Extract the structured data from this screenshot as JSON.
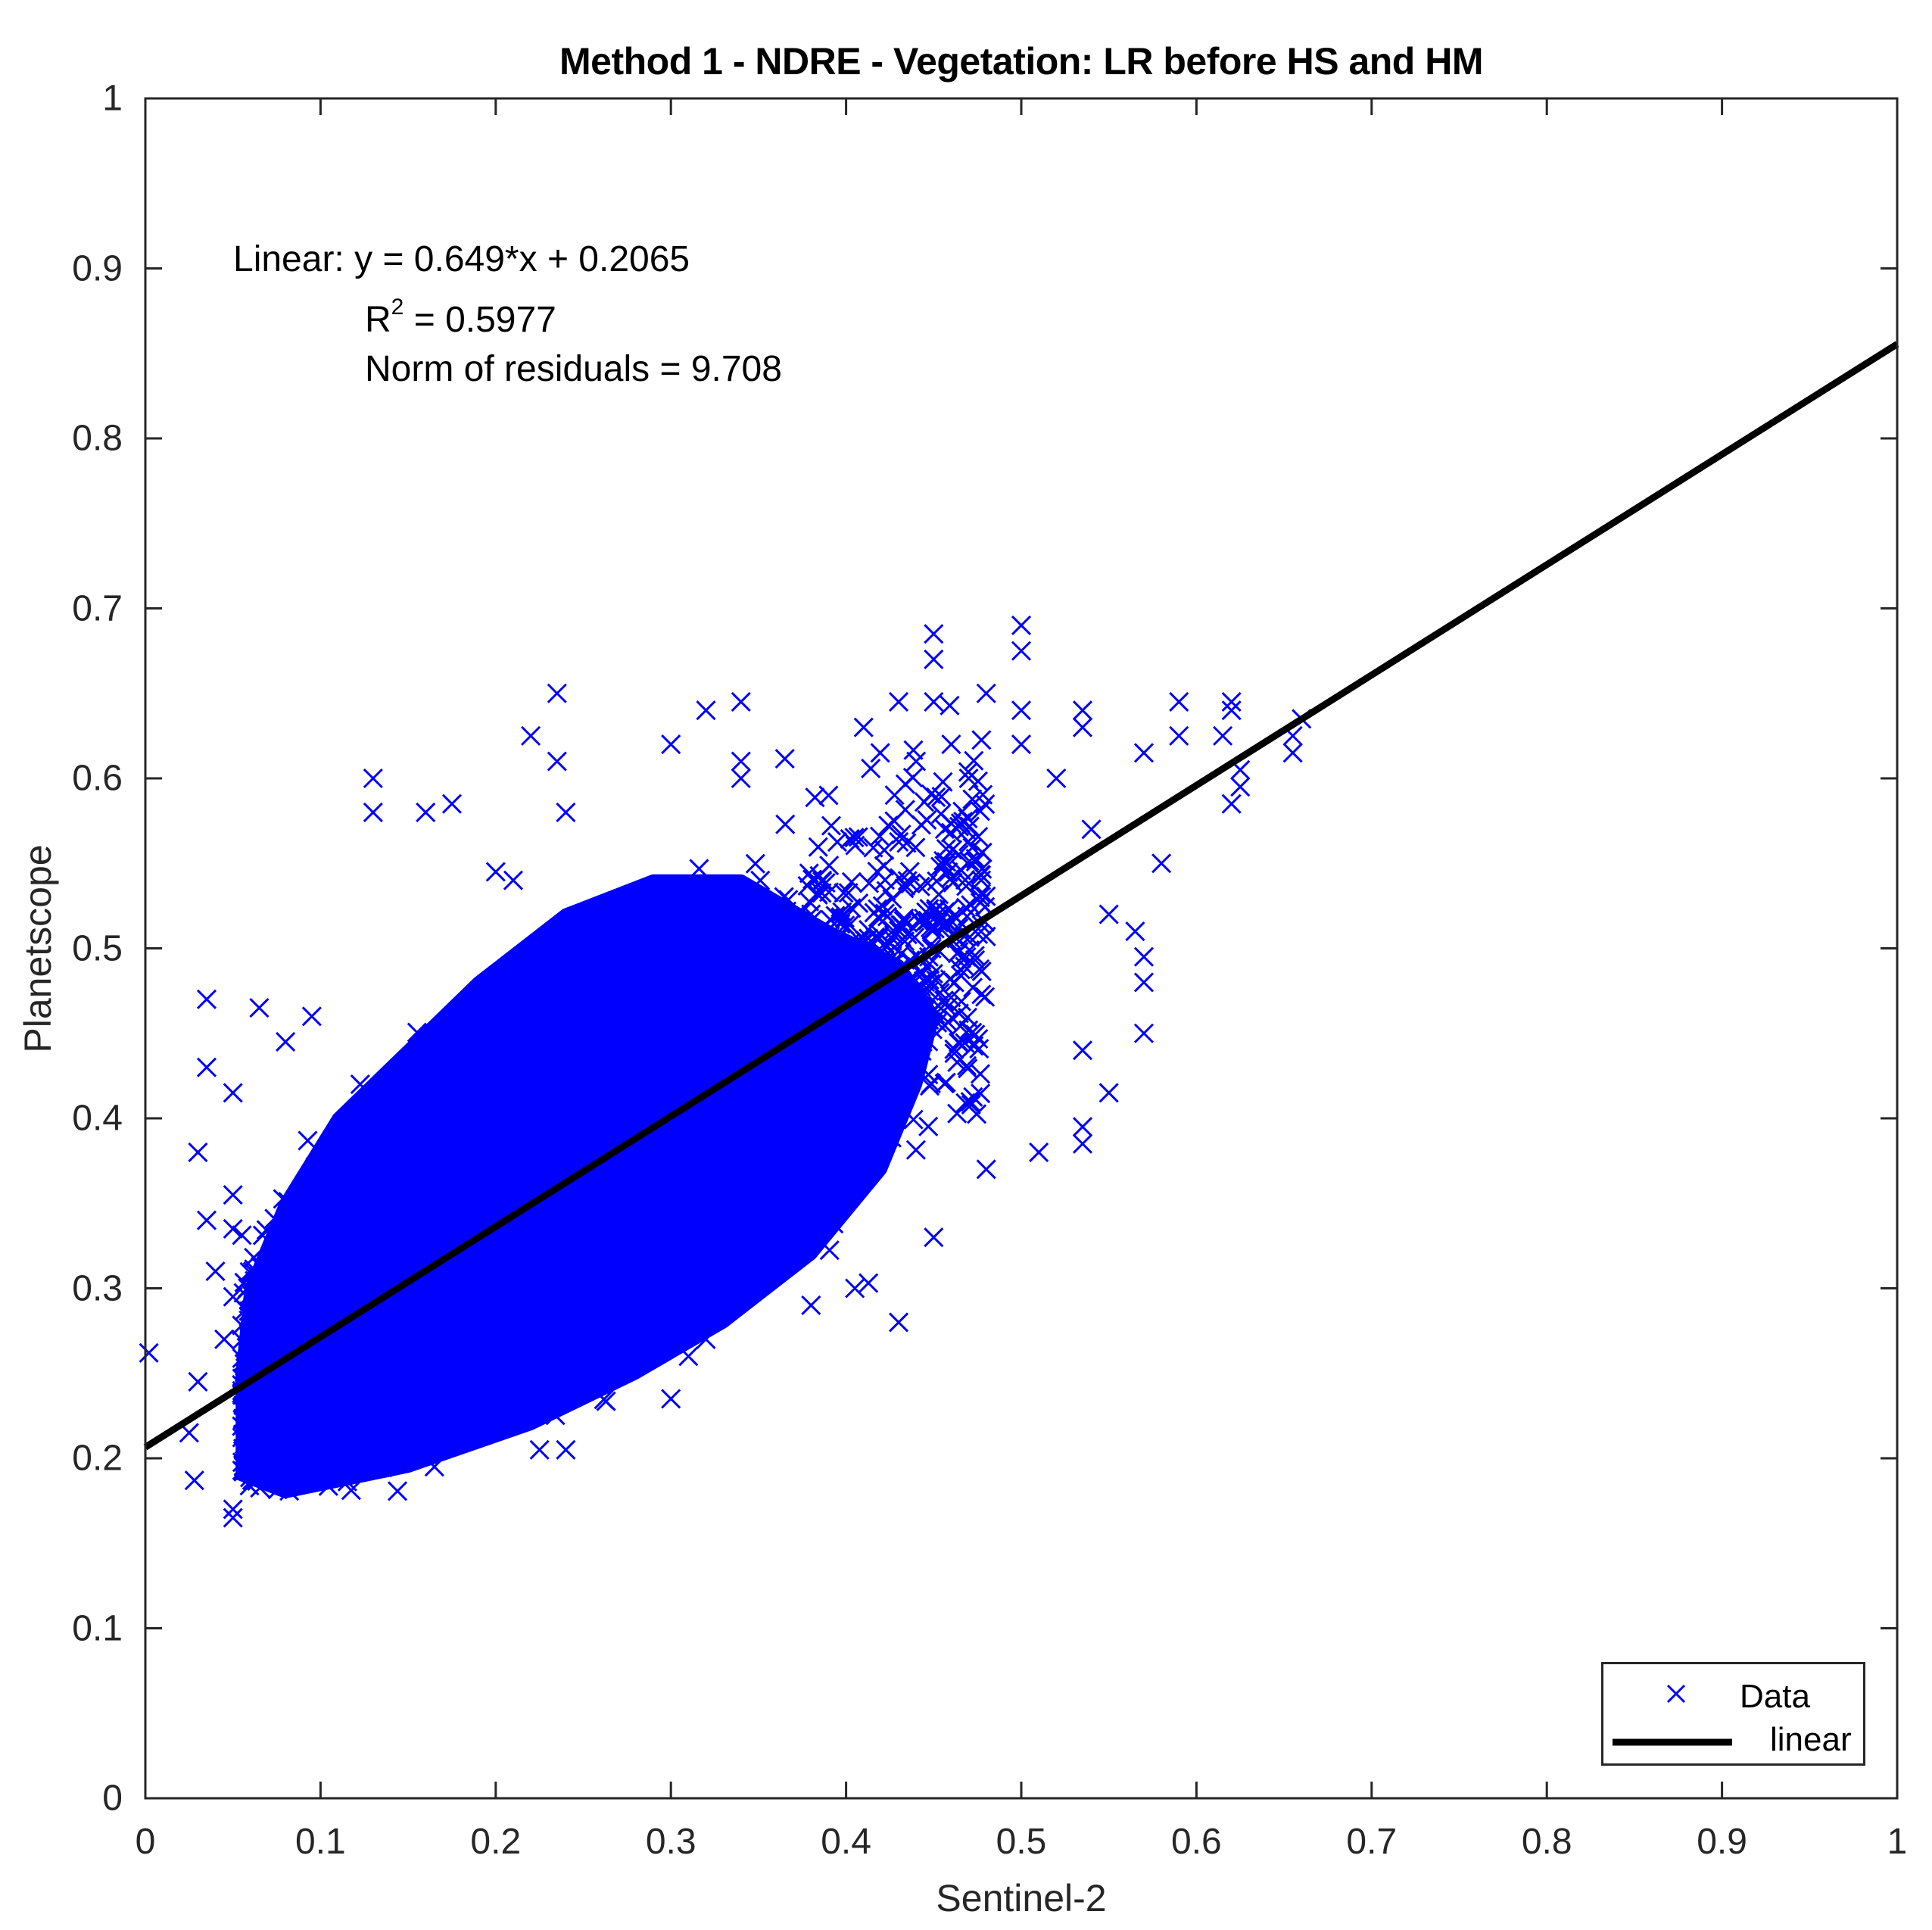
{
  "figure": {
    "title": "Method 1 - NDRE - Vegetation: LR before HS and HM",
    "xlabel": "Sentinel-2",
    "ylabel": "Planetscope",
    "annotation": {
      "line1": "Linear:  y = 0.649*x + 0.2065",
      "r2_label": "R",
      "r2_sup": "2",
      "r2_value": " = 0.5977",
      "line3": "Norm of residuals = 9.708"
    },
    "legend": {
      "data_label": "Data",
      "fit_label": "linear"
    },
    "colors": {
      "data": "#0000FF",
      "fit": "#000000",
      "axes": "#262626"
    }
  },
  "chart_data": {
    "type": "scatter",
    "title": "Method 1 - NDRE - Vegetation: LR before HS and HM",
    "xlabel": "Sentinel-2",
    "ylabel": "Planetscope",
    "xlim": [
      0,
      1
    ],
    "ylim": [
      0,
      1
    ],
    "xticks": [
      "0",
      "0.1",
      "0.2",
      "0.3",
      "0.4",
      "0.5",
      "0.6",
      "0.7",
      "0.8",
      "0.9",
      "1"
    ],
    "yticks": [
      "0",
      "0.1",
      "0.2",
      "0.3",
      "0.4",
      "0.5",
      "0.6",
      "0.7",
      "0.8",
      "0.9",
      "1"
    ],
    "grid": false,
    "legend_position": "southeast",
    "series": [
      {
        "name": "Data",
        "marker": "x",
        "color": "#0000FF",
        "dense_core_polygon": [
          [
            0.055,
            0.19
          ],
          [
            0.08,
            0.18
          ],
          [
            0.15,
            0.195
          ],
          [
            0.22,
            0.22
          ],
          [
            0.28,
            0.25
          ],
          [
            0.33,
            0.28
          ],
          [
            0.38,
            0.32
          ],
          [
            0.42,
            0.37
          ],
          [
            0.44,
            0.42
          ],
          [
            0.45,
            0.46
          ],
          [
            0.43,
            0.49
          ],
          [
            0.39,
            0.51
          ],
          [
            0.34,
            0.54
          ],
          [
            0.29,
            0.54
          ],
          [
            0.24,
            0.52
          ],
          [
            0.19,
            0.48
          ],
          [
            0.15,
            0.44
          ],
          [
            0.11,
            0.4
          ],
          [
            0.08,
            0.35
          ],
          [
            0.06,
            0.3
          ],
          [
            0.055,
            0.25
          ]
        ],
        "outliers": [
          [
            0.002,
            0.262
          ],
          [
            0.028,
            0.187
          ],
          [
            0.025,
            0.215
          ],
          [
            0.03,
            0.38
          ],
          [
            0.035,
            0.43
          ],
          [
            0.035,
            0.47
          ],
          [
            0.03,
            0.245
          ],
          [
            0.04,
            0.31
          ],
          [
            0.035,
            0.34
          ],
          [
            0.05,
            0.165
          ],
          [
            0.05,
            0.17
          ],
          [
            0.05,
            0.295
          ],
          [
            0.05,
            0.335
          ],
          [
            0.05,
            0.355
          ],
          [
            0.05,
            0.415
          ],
          [
            0.045,
            0.27
          ],
          [
            0.065,
            0.465
          ],
          [
            0.08,
            0.445
          ],
          [
            0.095,
            0.46
          ],
          [
            0.1,
            0.19
          ],
          [
            0.13,
            0.6
          ],
          [
            0.13,
            0.58
          ],
          [
            0.16,
            0.58
          ],
          [
            0.165,
            0.195
          ],
          [
            0.175,
            0.585
          ],
          [
            0.2,
            0.545
          ],
          [
            0.21,
            0.54
          ],
          [
            0.22,
            0.625
          ],
          [
            0.225,
            0.205
          ],
          [
            0.235,
            0.65
          ],
          [
            0.235,
            0.61
          ],
          [
            0.24,
            0.58
          ],
          [
            0.24,
            0.205
          ],
          [
            0.3,
            0.62
          ],
          [
            0.3,
            0.235
          ],
          [
            0.31,
            0.26
          ],
          [
            0.32,
            0.27
          ],
          [
            0.32,
            0.64
          ],
          [
            0.34,
            0.645
          ],
          [
            0.34,
            0.61
          ],
          [
            0.34,
            0.6
          ],
          [
            0.38,
            0.29
          ],
          [
            0.39,
            0.59
          ],
          [
            0.405,
            0.3
          ],
          [
            0.41,
            0.63
          ],
          [
            0.43,
            0.28
          ],
          [
            0.43,
            0.645
          ],
          [
            0.44,
            0.61
          ],
          [
            0.45,
            0.685
          ],
          [
            0.45,
            0.67
          ],
          [
            0.45,
            0.645
          ],
          [
            0.45,
            0.33
          ],
          [
            0.46,
            0.62
          ],
          [
            0.47,
            0.6
          ],
          [
            0.48,
            0.65
          ],
          [
            0.48,
            0.37
          ],
          [
            0.5,
            0.69
          ],
          [
            0.5,
            0.675
          ],
          [
            0.5,
            0.64
          ],
          [
            0.5,
            0.62
          ],
          [
            0.51,
            0.38
          ],
          [
            0.52,
            0.6
          ],
          [
            0.535,
            0.385
          ],
          [
            0.535,
            0.395
          ],
          [
            0.535,
            0.44
          ],
          [
            0.535,
            0.63
          ],
          [
            0.535,
            0.64
          ],
          [
            0.54,
            0.57
          ],
          [
            0.55,
            0.415
          ],
          [
            0.55,
            0.52
          ],
          [
            0.565,
            0.51
          ],
          [
            0.57,
            0.45
          ],
          [
            0.57,
            0.48
          ],
          [
            0.57,
            0.495
          ],
          [
            0.58,
            0.55
          ],
          [
            0.57,
            0.615
          ],
          [
            0.59,
            0.645
          ],
          [
            0.59,
            0.625
          ],
          [
            0.615,
            0.625
          ],
          [
            0.62,
            0.645
          ],
          [
            0.62,
            0.64
          ],
          [
            0.625,
            0.595
          ],
          [
            0.62,
            0.585
          ],
          [
            0.625,
            0.605
          ],
          [
            0.655,
            0.615
          ],
          [
            0.66,
            0.635
          ],
          [
            0.655,
            0.625
          ]
        ],
        "cloud_fill": {
          "count": 2600,
          "seed": 7,
          "x_range": [
            0.055,
            0.48
          ],
          "fit_slope": 0.649,
          "fit_intercept": 0.2065,
          "residual_sd": 0.045
        }
      },
      {
        "name": "linear",
        "type": "line",
        "color": "#000000",
        "slope": 0.649,
        "intercept": 0.2065,
        "x": [
          0,
          1
        ],
        "y": [
          0.2065,
          0.8555
        ]
      }
    ],
    "annotations": [
      "Linear:  y = 0.649*x + 0.2065",
      "R^2 = 0.5977",
      "Norm of residuals = 9.708"
    ]
  }
}
